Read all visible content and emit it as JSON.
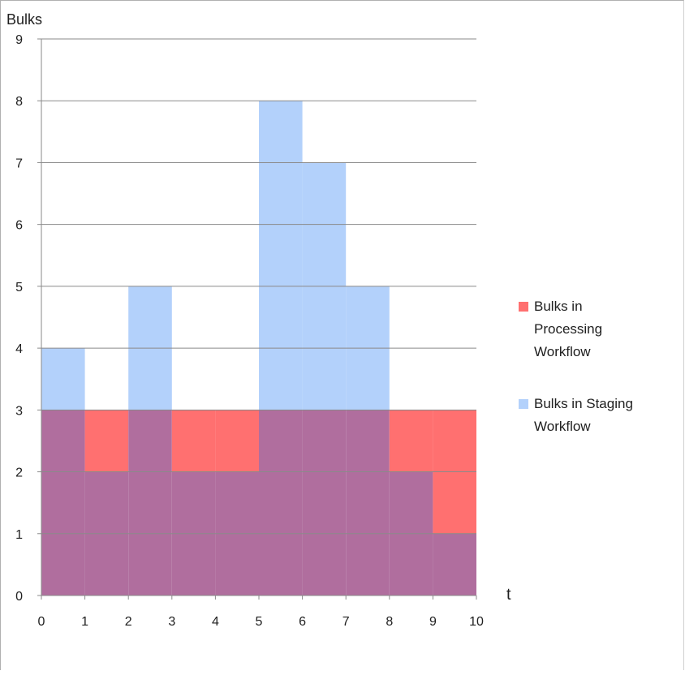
{
  "chart_data": {
    "type": "area",
    "title": "",
    "xlabel": "t",
    "ylabel": "Bulks",
    "xlim": [
      0,
      10
    ],
    "ylim": [
      0,
      9
    ],
    "x_ticks": [
      "0",
      "1",
      "2",
      "3",
      "4",
      "5",
      "6",
      "7",
      "8",
      "9",
      "10"
    ],
    "y_ticks": [
      "0",
      "1",
      "2",
      "3",
      "4",
      "5",
      "6",
      "7",
      "8",
      "9"
    ],
    "grid": "horizontal",
    "step": true,
    "legend_position": "right",
    "series": [
      {
        "name": "Bulks in Processing Workflow",
        "color": "#ff7070",
        "intervals": [
          [
            0,
            1
          ],
          [
            1,
            2
          ],
          [
            2,
            3
          ],
          [
            3,
            4
          ],
          [
            4,
            5
          ],
          [
            5,
            6
          ],
          [
            6,
            7
          ],
          [
            7,
            8
          ],
          [
            8,
            9
          ],
          [
            9,
            10
          ]
        ],
        "values": [
          3,
          3,
          3,
          3,
          3,
          3,
          3,
          3,
          3,
          3
        ]
      },
      {
        "name": "Bulks in Staging Workflow",
        "color": "#b3d1fb",
        "intervals": [
          [
            0,
            1
          ],
          [
            1,
            2
          ],
          [
            2,
            3
          ],
          [
            3,
            4
          ],
          [
            4,
            5
          ],
          [
            5,
            6
          ],
          [
            6,
            7
          ],
          [
            7,
            8
          ],
          [
            8,
            9
          ],
          [
            9,
            10
          ]
        ],
        "values": [
          4,
          2,
          5,
          2,
          2,
          8,
          7,
          5,
          2,
          1
        ]
      }
    ],
    "overlap_color": "#b06e9e"
  }
}
